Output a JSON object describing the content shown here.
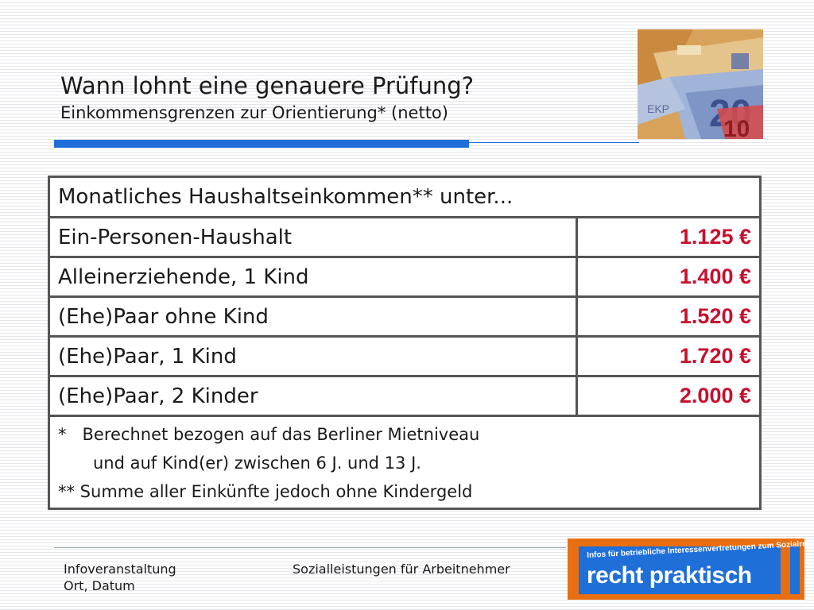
{
  "title": {
    "main": "Wann lohnt eine genauere Prüfung?",
    "sub": "Einkommensgrenzen zur Orientierung* (netto)"
  },
  "table": {
    "header": "Monatliches Haushaltseinkommen** unter...",
    "rows": [
      {
        "label": "Ein-Personen-Haushalt",
        "amount": "1.125 €"
      },
      {
        "label": "Alleinerziehende, 1 Kind",
        "amount": "1.400 €"
      },
      {
        "label": "(Ehe)Paar ohne Kind",
        "amount": "1.520 €"
      },
      {
        "label": "(Ehe)Paar, 1 Kind",
        "amount": "1.720 €"
      },
      {
        "label": "(Ehe)Paar, 2 Kinder",
        "amount": "2.000 €"
      }
    ],
    "notes": [
      "*   Berechnet bezogen auf das Berliner Mietniveau",
      "und auf Kind(er) zwischen 6 J. und 13 J.",
      "** Summe aller Einkünfte jedoch ohne Kindergeld"
    ]
  },
  "footer": {
    "left_line1": "Infoveranstaltung",
    "left_line2": "Ort, Datum",
    "center": "Sozialleistungen für Arbeitnehmer"
  },
  "logo": {
    "tagline": "Infos für betriebliche Interessenvertretungen zum Sozialrecht",
    "brand": "recht praktisch"
  },
  "colors": {
    "accent_blue": "#1f6fd8",
    "amount_red": "#c8102e",
    "logo_orange": "#e86e12"
  }
}
